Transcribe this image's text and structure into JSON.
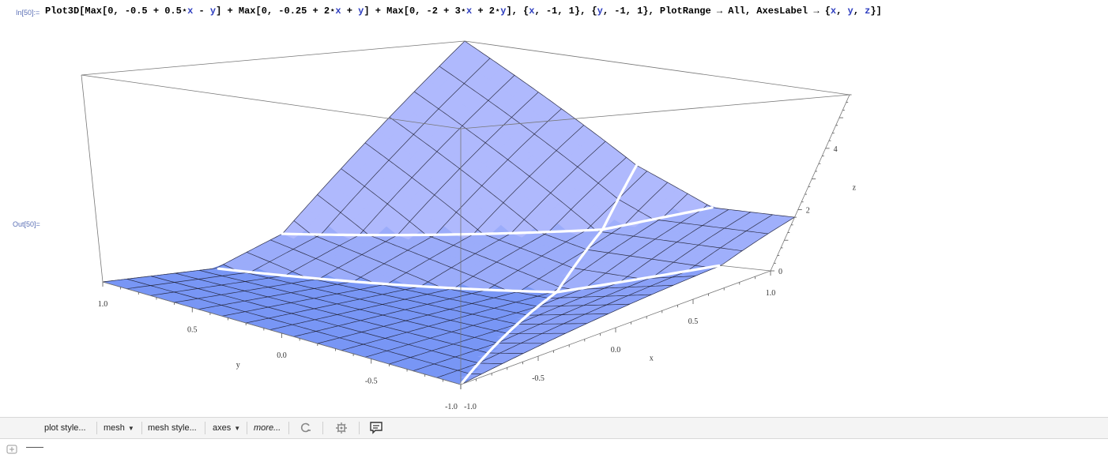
{
  "notebook": {
    "input_label": "In[50]:=",
    "output_label": "Out[50]=",
    "input_code_parts": [
      {
        "t": "Plot3D[Max[0, -0.5 + 0.5⋆",
        "c": "k"
      },
      {
        "t": "x",
        "c": "v"
      },
      {
        "t": " - ",
        "c": "k"
      },
      {
        "t": "y",
        "c": "v"
      },
      {
        "t": "] + Max[0, -0.25 + 2⋆",
        "c": "k"
      },
      {
        "t": "x",
        "c": "v"
      },
      {
        "t": " + ",
        "c": "k"
      },
      {
        "t": "y",
        "c": "v"
      },
      {
        "t": "] + Max[0, -2 + 3⋆",
        "c": "k"
      },
      {
        "t": "x",
        "c": "v"
      },
      {
        "t": " + 2⋆",
        "c": "k"
      },
      {
        "t": "y",
        "c": "v"
      },
      {
        "t": "], {",
        "c": "k"
      },
      {
        "t": "x",
        "c": "v"
      },
      {
        "t": ", -1, 1}, {",
        "c": "k"
      },
      {
        "t": "y",
        "c": "v"
      },
      {
        "t": ", -1, 1}, PlotRange → All, AxesLabel → {",
        "c": "k"
      },
      {
        "t": "x",
        "c": "v"
      },
      {
        "t": ", ",
        "c": "k"
      },
      {
        "t": "y",
        "c": "v"
      },
      {
        "t": ", ",
        "c": "k"
      },
      {
        "t": "z",
        "c": "v"
      },
      {
        "t": "}]",
        "c": "k"
      }
    ]
  },
  "chart_data": {
    "type": "surface3d",
    "function": "Max[0, -0.5 + 0.5 x - y] + Max[0, -0.25 + 2 x + y] + Max[0, -2 + 3 x + 2 y]",
    "x_range": [
      -1,
      1
    ],
    "y_range": [
      -1,
      1
    ],
    "z_range": [
      0,
      5.75
    ],
    "axes_labels": {
      "x": "x",
      "y": "y",
      "z": "z"
    },
    "x_ticks": [
      "-1.0",
      "-0.5",
      "0.0",
      "0.5",
      "1.0"
    ],
    "y_ticks": [
      "-1.0",
      "-0.5",
      "0.0",
      "0.5",
      "1.0"
    ],
    "z_ticks": [
      "0",
      "2",
      "4"
    ],
    "surface_color": "#8da4f5",
    "crease_color": "#ffffff",
    "mesh_lines": 15
  },
  "toolbar": {
    "items": [
      {
        "label": "plot style...",
        "caret": false,
        "italic": false
      },
      {
        "label": "mesh",
        "caret": true,
        "italic": false
      },
      {
        "label": "mesh style...",
        "caret": false,
        "italic": false
      },
      {
        "label": "axes",
        "caret": true,
        "italic": false
      },
      {
        "label": "more...",
        "caret": false,
        "italic": true
      }
    ],
    "icons": [
      "rotate-icon",
      "gear-icon",
      "comment-icon"
    ]
  }
}
